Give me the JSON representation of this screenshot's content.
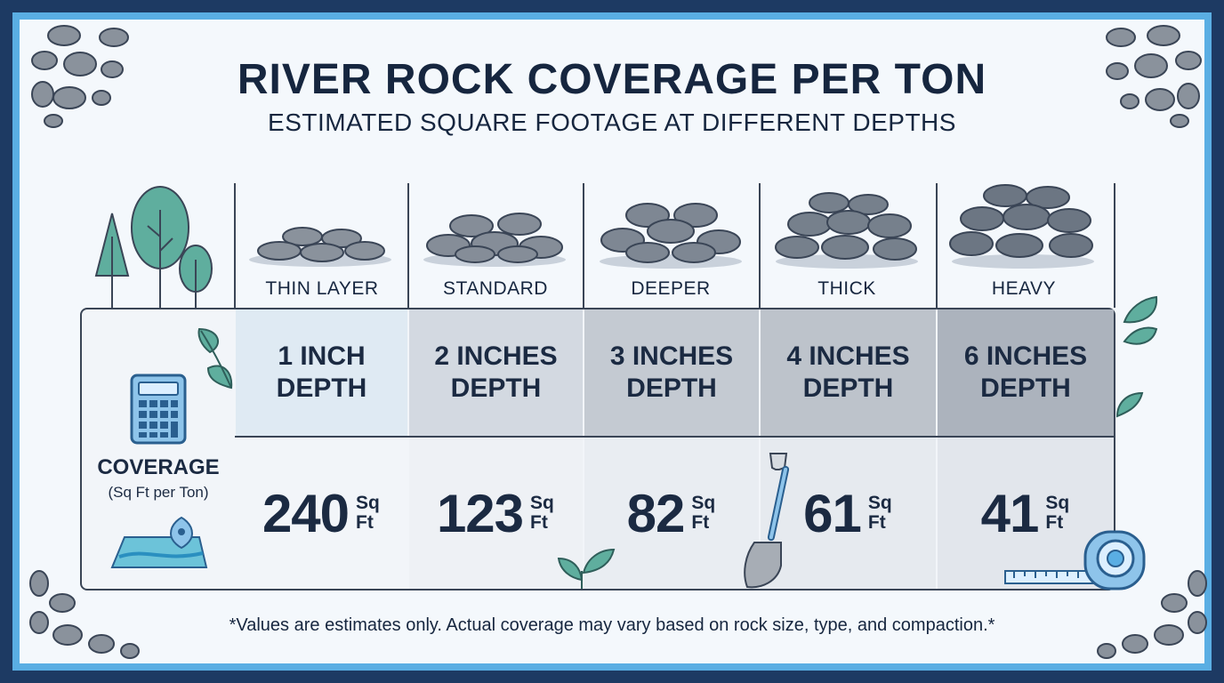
{
  "title": "RIVER ROCK COVERAGE PER TON",
  "subtitle": "ESTIMATED SQUARE FOOTAGE AT DIFFERENT DEPTHS",
  "row_label": {
    "main": "COVERAGE",
    "sub": "(Sq Ft per Ton)"
  },
  "unit_top": "Sq",
  "unit_bottom": "Ft",
  "columns": [
    {
      "name": "THIN LAYER",
      "depth": "1 INCH\nDEPTH",
      "coverage": "240"
    },
    {
      "name": "STANDARD",
      "depth": "2 INCHES\nDEPTH",
      "coverage": "123"
    },
    {
      "name": "DEEPER",
      "depth": "3 INCHES\nDEPTH",
      "coverage": "82"
    },
    {
      "name": "THICK",
      "depth": "4 INCHES\nDEPTH",
      "coverage": "61"
    },
    {
      "name": "HEAVY",
      "depth": "6 INCHES\nDEPTH",
      "coverage": "41"
    }
  ],
  "footnote": "*Values are estimates only. Actual coverage may vary based on rock size, type, and compaction.*",
  "colors": {
    "background": "#1d3a63",
    "frame": "#5aaee3",
    "ink": "#16263f",
    "pebble": "#8a929c",
    "leaf": "#5fae9e"
  },
  "icons": [
    "calculator-icon",
    "map-icon",
    "tree-icon",
    "shovel-icon",
    "tape-measure-icon",
    "leaf-icon",
    "sprout-icon",
    "pebble-icon"
  ]
}
